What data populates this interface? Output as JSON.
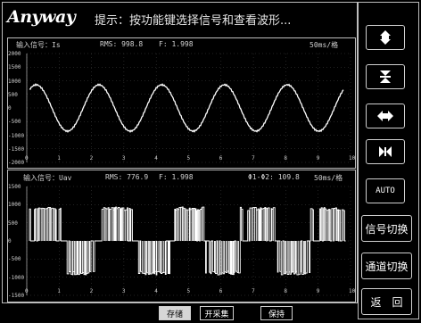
{
  "header": {
    "logo": "Anyway",
    "hint": "提示：按功能键选择信号和查看波形..."
  },
  "panel_top": {
    "label": "输入信号：Is",
    "rms": "RMS: 998.8",
    "freq": "F: 1.998",
    "timebase": "50ms/格",
    "y_ticks": [
      "2000",
      "1500",
      "1000",
      "500",
      "0",
      "-500",
      "-1000",
      "-1500",
      "-2000"
    ],
    "x_ticks": [
      "0",
      "1",
      "2",
      "3",
      "4",
      "5",
      "6",
      "7",
      "8",
      "9",
      "10"
    ]
  },
  "panel_bottom": {
    "label": "输入信号：Uav",
    "rms": "RMS: 776.9",
    "freq": "F: 1.998",
    "phase": "Φ1-Φ2: 109.8",
    "timebase": "50ms/格",
    "y_ticks": [
      "1500",
      "1000",
      "500",
      "0",
      "-500",
      "-1000",
      "-1500"
    ],
    "x_ticks": [
      "0",
      "1",
      "2",
      "3",
      "4",
      "5",
      "6",
      "7",
      "8",
      "9",
      "10"
    ]
  },
  "side_buttons": {
    "auto": "AUTO",
    "signal_switch": "信号切换",
    "channel_switch": "通道切换",
    "back": "返　回"
  },
  "bottom_buttons": {
    "save": "存储",
    "open": "开采集",
    "keep": "保持"
  },
  "icons": [
    "vertical-expand-icon",
    "vertical-compress-icon",
    "horizontal-expand-icon",
    "horizontal-compress-icon"
  ],
  "colors": {
    "background": "#000000",
    "trace": "#ffffff",
    "frame": "#bdbdbd",
    "save_fill": "#d6d6d6"
  }
}
